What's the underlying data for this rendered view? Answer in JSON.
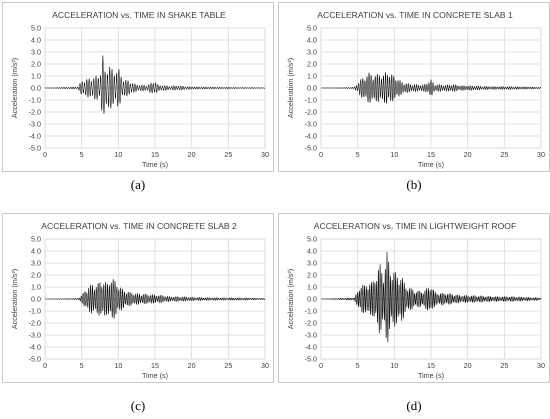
{
  "chart_data": [
    {
      "type": "line",
      "title": "ACCELERATION vs. TIME IN SHAKE TABLE",
      "xlabel": "Time (s)",
      "ylabel": "Acceleration (m/s²)",
      "xlim": [
        0,
        30
      ],
      "ylim": [
        -5,
        5
      ],
      "xticks": [
        "0",
        "5",
        "10",
        "15",
        "20",
        "25",
        "30"
      ],
      "yticks": [
        "5.0",
        "4.0",
        "3.0",
        "2.0",
        "1.0",
        "0.0",
        "-1.0",
        "-2.0",
        "-3.0",
        "-4.0",
        "-5.0"
      ],
      "grid": true,
      "caption": "(a)",
      "series": [
        {
          "x": [
            0,
            4.5,
            5.0,
            5.5,
            6.0,
            6.5,
            7.0,
            7.5,
            7.9,
            8.2,
            8.6,
            9.0,
            9.5,
            10.0,
            10.5,
            11.0,
            11.5,
            12.0,
            12.5,
            13.0,
            14.0,
            15.0,
            15.5,
            16.0,
            17.0,
            18.0,
            19.0,
            20.0,
            22.0,
            24.0,
            26.0,
            28.0,
            30.0
          ],
          "y": [
            0,
            0.1,
            0.6,
            0.7,
            0.8,
            0.9,
            1.0,
            1.1,
            2.8,
            1.5,
            2.2,
            1.7,
            1.4,
            1.7,
            0.9,
            0.7,
            0.6,
            0.4,
            0.3,
            0.25,
            0.25,
            0.6,
            0.2,
            0.25,
            0.15,
            0.2,
            0.15,
            0.1,
            0.08,
            0.06,
            0.05,
            0.04,
            0.02
          ]
        }
      ]
    },
    {
      "type": "line",
      "title": "ACCELERATION vs. TIME IN CONCRETE SLAB 1",
      "xlabel": "Time (s)",
      "ylabel": "Acceleration (m/s²)",
      "xlim": [
        0,
        30
      ],
      "ylim": [
        -5,
        5
      ],
      "xticks": [
        "0",
        "5",
        "10",
        "15",
        "20",
        "25",
        "30"
      ],
      "yticks": [
        "5.0",
        "4.0",
        "3.0",
        "2.0",
        "1.0",
        "0.0",
        "-1.0",
        "-2.0",
        "-3.0",
        "-4.0",
        "-5.0"
      ],
      "grid": true,
      "caption": "(b)",
      "series": [
        {
          "x": [
            0,
            4.5,
            5.0,
            5.5,
            6.0,
            6.5,
            7.0,
            7.5,
            8.0,
            8.5,
            9.0,
            9.5,
            10.0,
            10.5,
            11.0,
            12.0,
            13.0,
            14.0,
            15.0,
            15.5,
            16.0,
            17.0,
            18.0,
            19.0,
            20.0,
            22.0,
            24.0,
            26.0,
            28.0,
            30.0
          ],
          "y": [
            0,
            0.05,
            0.4,
            0.8,
            1.0,
            1.3,
            1.2,
            1.1,
            1.3,
            1.1,
            1.5,
            1.2,
            1.0,
            0.8,
            0.5,
            0.35,
            0.3,
            0.25,
            0.7,
            0.3,
            0.3,
            0.25,
            0.3,
            0.2,
            0.2,
            0.15,
            0.12,
            0.12,
            0.1,
            0.05
          ]
        }
      ]
    },
    {
      "type": "line",
      "title": "ACCELERATION vs. TIME IN CONCRETE SLAB 2",
      "xlabel": "Time (s)",
      "ylabel": "Acceleration (m/s²)",
      "xlim": [
        0,
        30
      ],
      "ylim": [
        -5,
        5
      ],
      "xticks": [
        "0",
        "5",
        "10",
        "15",
        "20",
        "25",
        "30"
      ],
      "yticks": [
        "5.0",
        "4.0",
        "3.0",
        "2.0",
        "1.0",
        "0.0",
        "-1.0",
        "-2.0",
        "-3.0",
        "-4.0",
        "-5.0"
      ],
      "grid": true,
      "caption": "(c)",
      "series": [
        {
          "x": [
            0,
            4.5,
            5.0,
            5.5,
            6.0,
            6.5,
            7.0,
            7.5,
            8.0,
            8.5,
            9.0,
            9.5,
            10.0,
            10.5,
            11.0,
            12.0,
            13.0,
            14.0,
            15.0,
            16.0,
            17.0,
            18.0,
            19.0,
            20.0,
            22.0,
            24.0,
            26.0,
            28.0,
            30.0
          ],
          "y": [
            0,
            0.05,
            0.3,
            0.8,
            1.1,
            1.3,
            1.2,
            1.5,
            1.6,
            1.3,
            1.9,
            1.6,
            1.2,
            0.9,
            0.7,
            0.5,
            0.45,
            0.4,
            0.35,
            0.3,
            0.2,
            0.2,
            0.18,
            0.15,
            0.12,
            0.1,
            0.1,
            0.08,
            0.05
          ]
        }
      ]
    },
    {
      "type": "line",
      "title": "ACCELERATION vs. TIME IN LIGHTWEIGHT ROOF",
      "xlabel": "Time (s)",
      "ylabel": "Acceleration (m/s²)",
      "xlim": [
        0,
        30
      ],
      "ylim": [
        -5,
        5
      ],
      "xticks": [
        "0",
        "5",
        "10",
        "15",
        "20",
        "25",
        "30"
      ],
      "yticks": [
        "5.0",
        "4.0",
        "3.0",
        "2.0",
        "1.0",
        "0.0",
        "-1.0",
        "-2.0",
        "-3.0",
        "-4.0",
        "-5.0"
      ],
      "grid": true,
      "caption": "(d)",
      "series": [
        {
          "x": [
            0,
            4.5,
            5.0,
            5.5,
            6.0,
            6.5,
            7.0,
            7.5,
            8.0,
            8.5,
            9.0,
            9.5,
            10.0,
            10.5,
            11.0,
            11.5,
            12.0,
            13.0,
            14.0,
            15.0,
            15.5,
            16.0,
            17.0,
            18.0,
            19.0,
            20.0,
            22.0,
            24.0,
            26.0,
            28.0,
            30.0
          ],
          "y": [
            0,
            0.1,
            0.6,
            1.4,
            1.1,
            1.5,
            1.4,
            2.1,
            3.0,
            2.2,
            4.0,
            2.5,
            2.4,
            2.0,
            2.0,
            1.2,
            1.0,
            0.7,
            0.7,
            1.2,
            0.6,
            0.5,
            0.5,
            0.4,
            0.3,
            0.3,
            0.25,
            0.2,
            0.2,
            0.15,
            0.1
          ]
        }
      ]
    }
  ]
}
